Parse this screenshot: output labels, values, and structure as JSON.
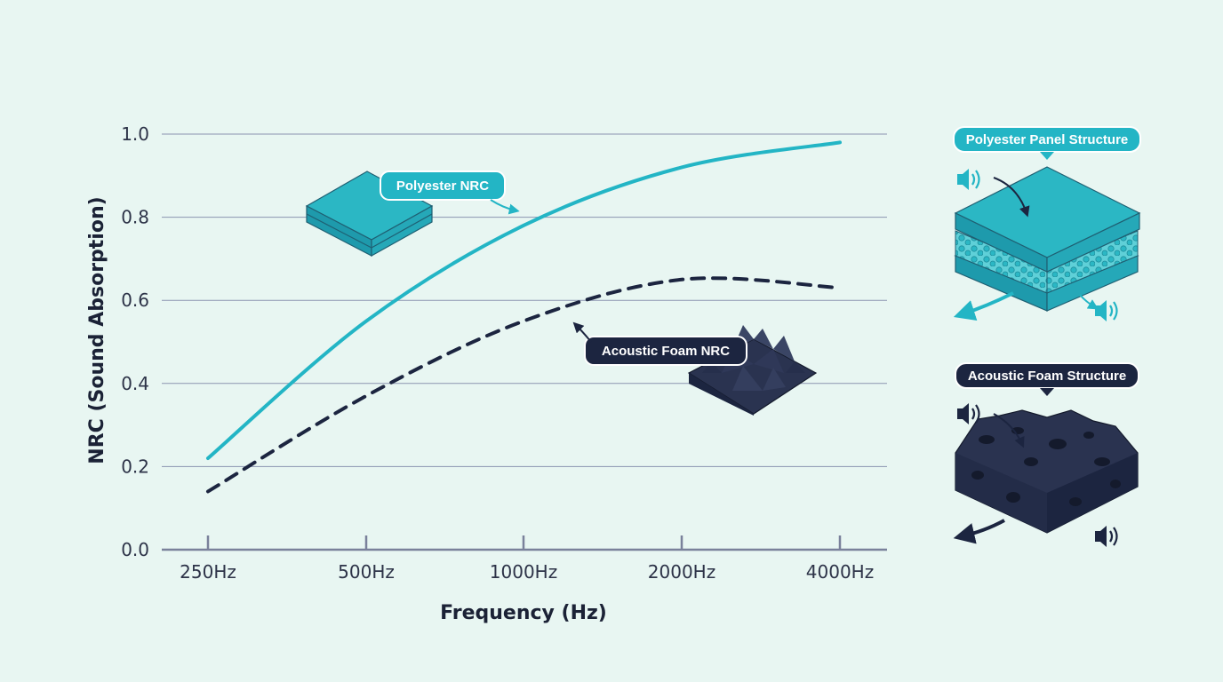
{
  "colors": {
    "background": "#e8f6f2",
    "polyester": "#23b5c5",
    "foam": "#1c2540",
    "grid": "#8a93b0",
    "axis": "#7a819b"
  },
  "chart_data": {
    "type": "line",
    "categories": [
      "250Hz",
      "500Hz",
      "1000Hz",
      "2000Hz",
      "4000Hz"
    ],
    "xlabel": "Frequency (Hz)",
    "ylabel": "NRC (Sound Absorption)",
    "ylim": [
      0,
      1.0
    ],
    "yticks": [
      "0.0",
      "0.2",
      "0.4",
      "0.6",
      "0.8",
      "1.0"
    ],
    "grid": true,
    "series": [
      {
        "name": "Polyester NRC",
        "style": "solid",
        "color": "#23b5c5",
        "values": [
          0.22,
          0.55,
          0.78,
          0.92,
          0.98
        ]
      },
      {
        "name": "Acoustic Foam NRC",
        "style": "dashed",
        "color": "#1c2540",
        "values": [
          0.14,
          0.37,
          0.55,
          0.65,
          0.63
        ]
      }
    ]
  },
  "callouts": {
    "polyester": "Polyester NRC",
    "foam": "Acoustic Foam NRC"
  },
  "panels": {
    "polyester_title": "Polyester Panel Structure",
    "foam_title": "Acoustic Foam Structure"
  },
  "icons": [
    "speaker-icon",
    "foam-pyramid-icon",
    "polyester-panel-icon",
    "arrow-icon"
  ]
}
